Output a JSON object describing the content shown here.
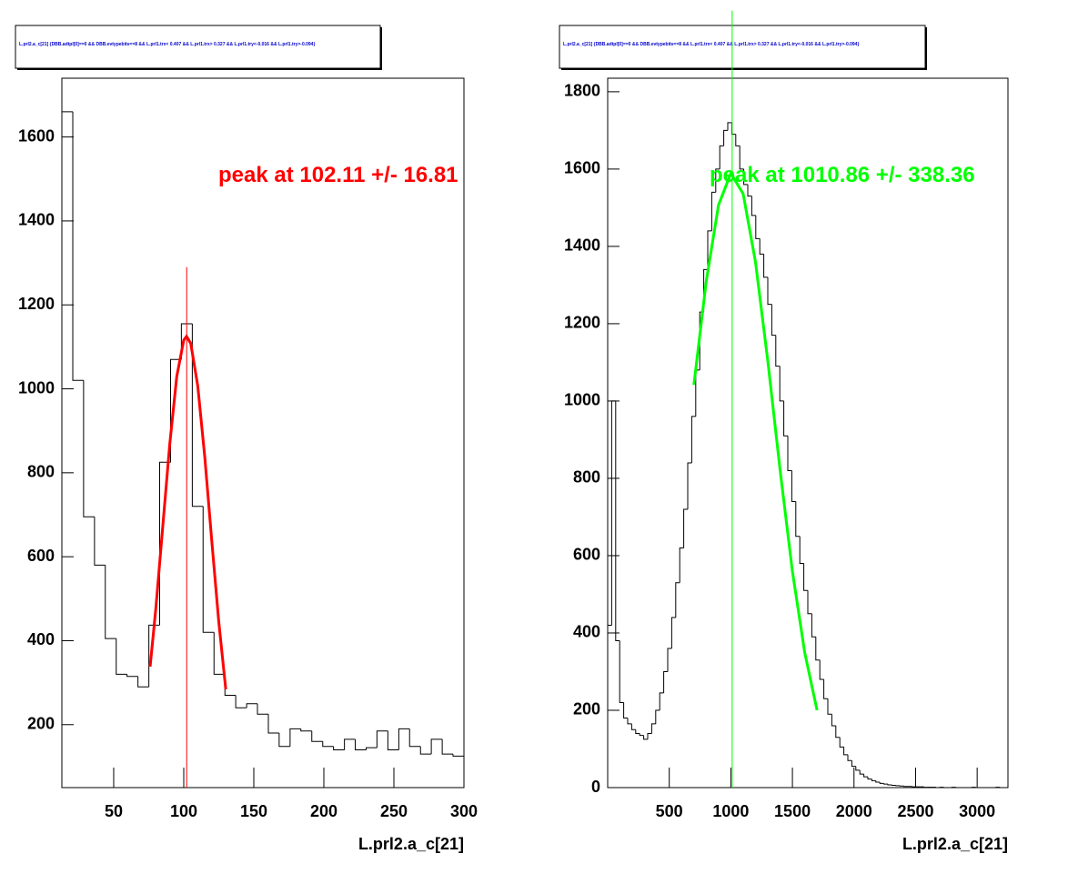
{
  "chart_data": [
    {
      "type": "histogram",
      "title": "L.prl2.a_c[21] {DBB.adtpl[0]==0 && DBB.evtypebits==8 &&  L.prl1.trx< 0.407 && L.prl1.trx> 0.327 && L.prl1.try<-0.016 && L.prl1.try>-0.094}",
      "xlabel": "L.prl2.a_c[21]",
      "annotation": "peak at 102.11 +/- 16.81",
      "annotation_color": "#ff0000",
      "color": "#000000",
      "bins": [
        13.0,
        20.8,
        28.5,
        36.3,
        44.0,
        51.8,
        59.5,
        67.3,
        75.1,
        82.8,
        90.6,
        98.3,
        106.1,
        113.8,
        121.6,
        129.4,
        137.1,
        144.9,
        152.6,
        160.4,
        168.1,
        175.9,
        183.6,
        191.4,
        199.2,
        206.9,
        214.7,
        222.4,
        230.2,
        237.9,
        245.7,
        253.5,
        261.2,
        269.0,
        276.7,
        284.5,
        292.2,
        300.0
      ],
      "values": [
        1660,
        1020,
        695,
        580,
        405,
        320,
        315,
        290,
        437,
        825,
        1070,
        1155,
        720,
        420,
        320,
        270,
        240,
        250,
        225,
        180,
        148,
        190,
        185,
        160,
        148,
        140,
        165,
        140,
        145,
        185,
        140,
        190,
        148,
        130,
        165,
        130,
        125
      ],
      "fit": {
        "color": "#ff0000",
        "x": [
          76,
          80,
          85,
          90,
          95,
          100,
          102,
          105,
          110,
          115,
          120,
          125,
          130
        ],
        "values": [
          338,
          474,
          671,
          868,
          1029,
          1116,
          1125,
          1108,
          1007,
          838,
          638,
          445,
          284
        ]
      },
      "vline": {
        "x": 102.11,
        "ymax": 1290,
        "color": "#ff0000"
      },
      "xlim": [
        13,
        300
      ],
      "ylim": [
        50,
        1740
      ],
      "xticks": [
        50,
        100,
        150,
        200,
        250,
        300
      ],
      "yticks": [
        200,
        400,
        600,
        800,
        1000,
        1200,
        1400,
        1600
      ]
    },
    {
      "type": "histogram",
      "title": "L.prl2.a_c[21] {DBB.adtpl[0]==0 && DBB.evtypebits==8 &&  L.prl1.trx< 0.407 && L.prl1.trx> 0.327 && L.prl1.try<-0.016 && L.prl1.try>-0.094}",
      "xlabel": "L.prl2.a_c[21]",
      "annotation": "peak at 1010.86 +/- 338.36",
      "annotation_color": "#00ff00",
      "color": "#000000",
      "bins": [
        0,
        32.5,
        65,
        97.5,
        130,
        162.5,
        195,
        227.5,
        260,
        292.5,
        325,
        357.5,
        390,
        422.5,
        455,
        487.5,
        520,
        552.5,
        585,
        617.5,
        650,
        682.5,
        715,
        747.5,
        780,
        812.5,
        845,
        877.5,
        910,
        942.5,
        975,
        1007.5,
        1040,
        1072.5,
        1105,
        1137.5,
        1170,
        1202.5,
        1235,
        1267.5,
        1300,
        1332.5,
        1365,
        1397.5,
        1430,
        1462.5,
        1495,
        1527.5,
        1560,
        1592.5,
        1625,
        1657.5,
        1690,
        1722.5,
        1755,
        1787.5,
        1820,
        1852.5,
        1885,
        1917.5,
        1950,
        1982.5,
        2015,
        2047.5,
        2080,
        2112.5,
        2145,
        2177.5,
        2210,
        2242.5,
        2275,
        2307.5,
        2340,
        2372.5,
        2405,
        2437.5,
        2470,
        2502.5,
        2535,
        2567.5,
        2600,
        2632.5,
        2665,
        2697.5,
        2730,
        2762.5,
        2795,
        2827.5,
        2860,
        2892.5,
        2925,
        2957.5,
        2990,
        3022.5,
        3055,
        3087.5,
        3120,
        3152.5,
        3185,
        3217.5,
        3250
      ],
      "values": [
        420,
        1000,
        380,
        220,
        180,
        165,
        150,
        140,
        135,
        125,
        140,
        165,
        200,
        245,
        300,
        360,
        440,
        530,
        620,
        720,
        840,
        960,
        1080,
        1230,
        1340,
        1440,
        1540,
        1600,
        1660,
        1700,
        1720,
        1690,
        1660,
        1600,
        1560,
        1530,
        1480,
        1420,
        1380,
        1320,
        1250,
        1170,
        1090,
        1000,
        910,
        820,
        740,
        650,
        580,
        510,
        450,
        390,
        330,
        280,
        230,
        190,
        160,
        130,
        105,
        85,
        70,
        55,
        45,
        35,
        28,
        22,
        18,
        14,
        11,
        9,
        7,
        6,
        5,
        4,
        3,
        3,
        2,
        2,
        2,
        1,
        1,
        1,
        0,
        1,
        0,
        0,
        1,
        0,
        0,
        0,
        0,
        1,
        0,
        0,
        0,
        0,
        0,
        1,
        0,
        0
      ],
      "fit": {
        "color": "#00ff00",
        "x": [
          700,
          800,
          900,
          1000,
          1100,
          1200,
          1300,
          1400,
          1500,
          1600,
          1700
        ],
        "values": [
          1042,
          1309,
          1507,
          1589,
          1536,
          1360,
          1104,
          821,
          559,
          349,
          200
        ]
      },
      "vline": {
        "x": 1010.86,
        "ymax": 2010,
        "color": "#00ff00"
      },
      "xlim": [
        0,
        3250
      ],
      "ylim": [
        0,
        1835
      ],
      "xticks": [
        500,
        1000,
        1500,
        2000,
        2500,
        3000
      ],
      "yticks": [
        0,
        200,
        400,
        600,
        800,
        1000,
        1200,
        1400,
        1600,
        1800
      ]
    }
  ]
}
